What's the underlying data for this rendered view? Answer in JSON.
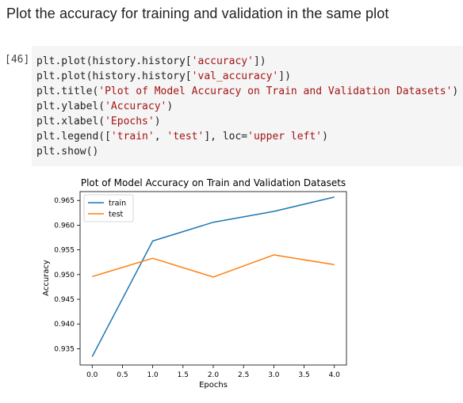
{
  "markdown": {
    "heading": "Plot the accuracy for training and validation in the same plot"
  },
  "code_cell": {
    "execution_count": "[46]",
    "lines": [
      [
        {
          "t": "plt.plot(history.history[",
          "s": false
        },
        {
          "t": "'accuracy'",
          "s": true
        },
        {
          "t": "])",
          "s": false
        }
      ],
      [
        {
          "t": "plt.plot(history.history[",
          "s": false
        },
        {
          "t": "'val_accuracy'",
          "s": true
        },
        {
          "t": "])",
          "s": false
        }
      ],
      [
        {
          "t": "plt.title(",
          "s": false
        },
        {
          "t": "'Plot of Model Accuracy on Train and Validation Datasets'",
          "s": true
        },
        {
          "t": ")",
          "s": false
        }
      ],
      [
        {
          "t": "plt.ylabel(",
          "s": false
        },
        {
          "t": "'Accuracy'",
          "s": true
        },
        {
          "t": ")",
          "s": false
        }
      ],
      [
        {
          "t": "plt.xlabel(",
          "s": false
        },
        {
          "t": "'Epochs'",
          "s": true
        },
        {
          "t": ")",
          "s": false
        }
      ],
      [
        {
          "t": "plt.legend([",
          "s": false
        },
        {
          "t": "'train'",
          "s": true
        },
        {
          "t": ", ",
          "s": false
        },
        {
          "t": "'test'",
          "s": true
        },
        {
          "t": "], loc=",
          "s": false
        },
        {
          "t": "'upper left'",
          "s": true
        },
        {
          "t": ")",
          "s": false
        }
      ],
      [
        {
          "t": "plt.show()",
          "s": false
        }
      ]
    ]
  },
  "chart_data": {
    "type": "line",
    "title": "Plot of Model Accuracy on Train and Validation Datasets",
    "xlabel": "Epochs",
    "ylabel": "Accuracy",
    "x": [
      0,
      1,
      2,
      3,
      4
    ],
    "xlim": [
      -0.2,
      4.2
    ],
    "ylim": [
      0.9317,
      0.9668
    ],
    "xticks": [
      0.0,
      0.5,
      1.0,
      1.5,
      2.0,
      2.5,
      3.0,
      3.5,
      4.0
    ],
    "xtick_labels": [
      "0.0",
      "0.5",
      "1.0",
      "1.5",
      "2.0",
      "2.5",
      "3.0",
      "3.5",
      "4.0"
    ],
    "yticks": [
      0.935,
      0.94,
      0.945,
      0.95,
      0.955,
      0.96,
      0.965
    ],
    "ytick_labels": [
      "0.935",
      "0.940",
      "0.945",
      "0.950",
      "0.955",
      "0.960",
      "0.965"
    ],
    "grid": false,
    "legend_position": "upper left",
    "series": [
      {
        "name": "train",
        "color": "#1f77b4",
        "values": [
          0.9334,
          0.9568,
          0.9606,
          0.9628,
          0.9657
        ]
      },
      {
        "name": "test",
        "color": "#ff7f0e",
        "values": [
          0.9496,
          0.9533,
          0.9495,
          0.954,
          0.952
        ]
      }
    ]
  }
}
